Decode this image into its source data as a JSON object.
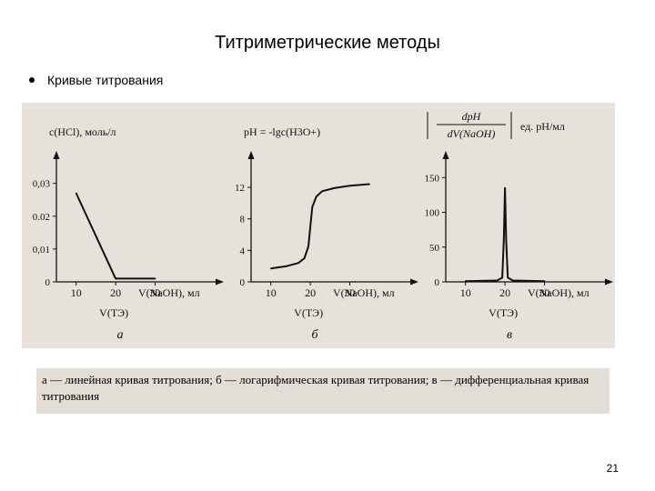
{
  "slide": {
    "title": "Титриметрические методы",
    "bullet": "Кривые титрования",
    "caption": "а — линейная кривая титрования; б — логарифмическая кривая титрования; в — дифференциальная кривая титрования",
    "page_number": "21"
  },
  "colors": {
    "scan_bg": "#e6e1da",
    "ink": "#111111"
  },
  "chart_data": [
    {
      "type": "line",
      "panel_letter": "а",
      "ylabel": "c(HCl),  моль/л",
      "xlabel": "V(NaOH),  мл",
      "xtick_labels": [
        "10",
        "20",
        "30"
      ],
      "ytick_labels": [
        "0",
        "0,01",
        "0.02",
        "0,03"
      ],
      "equivalence_label": "V(ТЭ)",
      "xlim": [
        5,
        46
      ],
      "ylim": [
        0,
        0.036
      ],
      "x": [
        10,
        20,
        21,
        22,
        30
      ],
      "y": [
        0.027,
        0.001,
        0.001,
        0.001,
        0.001
      ]
    },
    {
      "type": "line",
      "panel_letter": "б",
      "ylabel": "pH = -lgc(H3O+)",
      "xlabel": "V(NaOH),  мл",
      "xtick_labels": [
        "10",
        "20",
        "30"
      ],
      "ytick_labels": [
        "0",
        "4",
        "8",
        "12"
      ],
      "equivalence_label": "V(ТЭ)",
      "xlim": [
        5,
        46
      ],
      "ylim": [
        0,
        15
      ],
      "x": [
        10,
        14,
        17,
        18.5,
        19.5,
        20,
        20.5,
        21.5,
        23,
        26,
        30,
        35
      ],
      "y": [
        1.7,
        2.0,
        2.4,
        3.0,
        4.5,
        7.0,
        9.5,
        10.8,
        11.5,
        11.9,
        12.2,
        12.4
      ]
    },
    {
      "type": "line",
      "panel_letter": "в",
      "ylabel_num": "dpH",
      "ylabel_den": "dV(NaOH)",
      "ylabel_unit": "ед. pH/мл",
      "xlabel": "V(NaOH),  мл",
      "xtick_labels": [
        "10",
        "20",
        "30"
      ],
      "ytick_labels": [
        "0",
        "50",
        "100",
        "150"
      ],
      "equivalence_label": "V(ТЭ)",
      "xlim": [
        5,
        46
      ],
      "ylim": [
        0,
        170
      ],
      "x": [
        10,
        18,
        19.3,
        19.7,
        20,
        20.3,
        20.7,
        22,
        30
      ],
      "y": [
        1,
        2,
        6,
        60,
        135,
        60,
        6,
        2,
        1
      ]
    }
  ]
}
